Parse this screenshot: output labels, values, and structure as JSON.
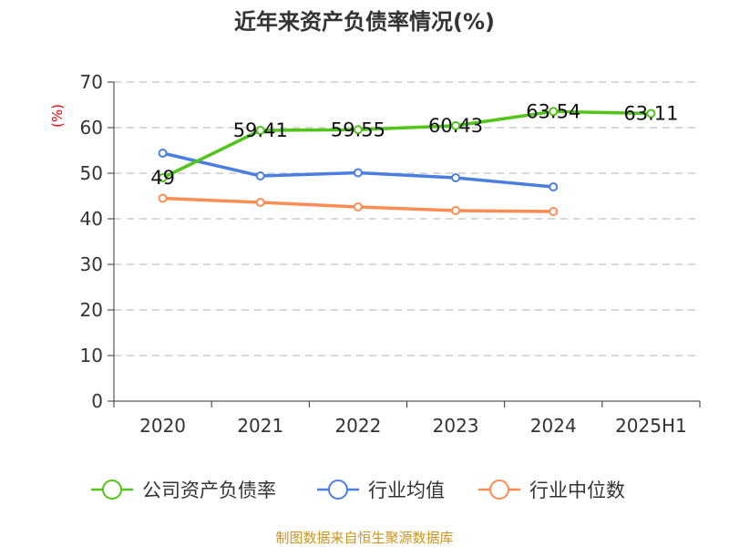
{
  "chart_data": {
    "type": "line",
    "title": "近年来资产负债率情况(%)",
    "ylabel": "(%)",
    "categories": [
      "2020",
      "2021",
      "2022",
      "2023",
      "2024",
      "2025H1"
    ],
    "ylim": [
      0,
      70
    ],
    "yticks": [
      0,
      10,
      20,
      30,
      40,
      50,
      60,
      70
    ],
    "grid": true,
    "legend_position": "bottom",
    "series": [
      {
        "name": "公司资产负债率",
        "color": "#52c41a",
        "values": [
          49,
          59.41,
          59.55,
          60.43,
          63.54,
          63.11
        ],
        "data_labels": [
          "49",
          "59.41",
          "59.55",
          "60.43",
          "63.54",
          "63.11"
        ]
      },
      {
        "name": "行业均值",
        "color": "#4a7fe0",
        "values": [
          54.4,
          49.4,
          50.1,
          49.0,
          47.0,
          null
        ]
      },
      {
        "name": "行业中位数",
        "color": "#ff8c55",
        "values": [
          44.5,
          43.6,
          42.6,
          41.8,
          41.6,
          null
        ]
      }
    ]
  },
  "footer": {
    "source": "制图数据来自恒生聚源数据库"
  }
}
